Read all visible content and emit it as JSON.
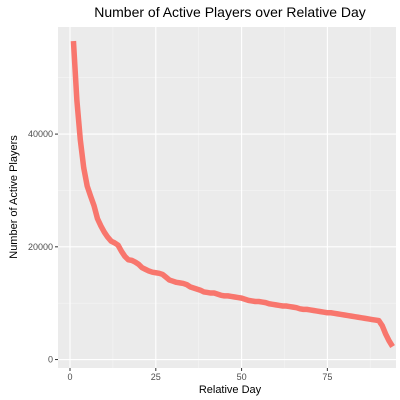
{
  "colors": {
    "panel_background": "#ebebeb",
    "grid_major": "#ffffff",
    "grid_minor": "#f5f5f5",
    "line": "#f8766d",
    "tick": "#333333"
  },
  "chart_data": {
    "type": "line",
    "title": "Number of Active Players over Relative Day",
    "xlabel": "Relative Day",
    "ylabel": "Number of Active Players",
    "xlim": [
      -3.5,
      95
    ],
    "ylim": [
      -1500,
      59000
    ],
    "x_ticks": [
      0,
      25,
      50,
      75
    ],
    "x_tick_labels": [
      "0",
      "25",
      "50",
      "75"
    ],
    "y_ticks": [
      0,
      20000,
      40000
    ],
    "y_tick_labels": [
      "0",
      "20000",
      "40000"
    ],
    "grid": true,
    "legend": "none",
    "series": [
      {
        "x": [
          1,
          2,
          3,
          4,
          5,
          6,
          7,
          8,
          9,
          10,
          11,
          12,
          13,
          14,
          15,
          16,
          17,
          18,
          19,
          20,
          21,
          22,
          23,
          24,
          25,
          26,
          27,
          28,
          29,
          30,
          31,
          32,
          33,
          34,
          35,
          36,
          37,
          38,
          39,
          40,
          41,
          42,
          43,
          44,
          45,
          46,
          47,
          48,
          49,
          50,
          51,
          52,
          53,
          54,
          55,
          56,
          57,
          58,
          59,
          60,
          61,
          62,
          63,
          64,
          65,
          66,
          67,
          68,
          69,
          70,
          71,
          72,
          73,
          74,
          75,
          76,
          77,
          78,
          79,
          80,
          81,
          82,
          83,
          84,
          85,
          86,
          87,
          88,
          89,
          90,
          91,
          92,
          93,
          94
        ],
        "y": [
          56500,
          46000,
          39000,
          34000,
          30800,
          29000,
          27300,
          25000,
          23700,
          22600,
          21700,
          21000,
          20700,
          20300,
          19200,
          18300,
          17700,
          17600,
          17300,
          16900,
          16300,
          16000,
          15700,
          15500,
          15400,
          15300,
          15100,
          14600,
          14100,
          13900,
          13700,
          13600,
          13500,
          13300,
          12900,
          12700,
          12500,
          12300,
          12000,
          11900,
          11800,
          11800,
          11600,
          11400,
          11300,
          11300,
          11200,
          11100,
          11000,
          10900,
          10700,
          10500,
          10400,
          10300,
          10300,
          10200,
          10100,
          9900,
          9800,
          9700,
          9600,
          9500,
          9500,
          9400,
          9300,
          9200,
          9000,
          8900,
          8900,
          8800,
          8700,
          8600,
          8500,
          8400,
          8300,
          8300,
          8200,
          8100,
          8000,
          7900,
          7800,
          7700,
          7600,
          7500,
          7400,
          7300,
          7200,
          7100,
          7000,
          6900,
          6000,
          4500,
          3300,
          2300
        ]
      }
    ]
  }
}
